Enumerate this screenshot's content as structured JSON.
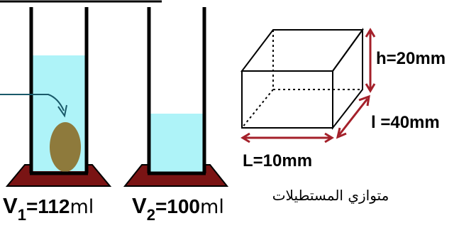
{
  "diagram": {
    "cylinder_1": {
      "label": {
        "symbol": "V",
        "subscript": "1",
        "value": "=112",
        "unit": "ml"
      }
    },
    "cylinder_2": {
      "label": {
        "symbol": "V",
        "subscript": "2",
        "value": "=100",
        "unit": "ml"
      }
    },
    "box": {
      "height_label": "h=20mm",
      "width_label": "l =40mm",
      "length_label": "L=10mm",
      "caption": "متوازي المستطيلات"
    },
    "colors": {
      "water": "#aef3f8",
      "object": "#8e7a3c",
      "base": "#7a1414",
      "dimension_arrow": "#a4202a",
      "outline": "#000000"
    }
  }
}
